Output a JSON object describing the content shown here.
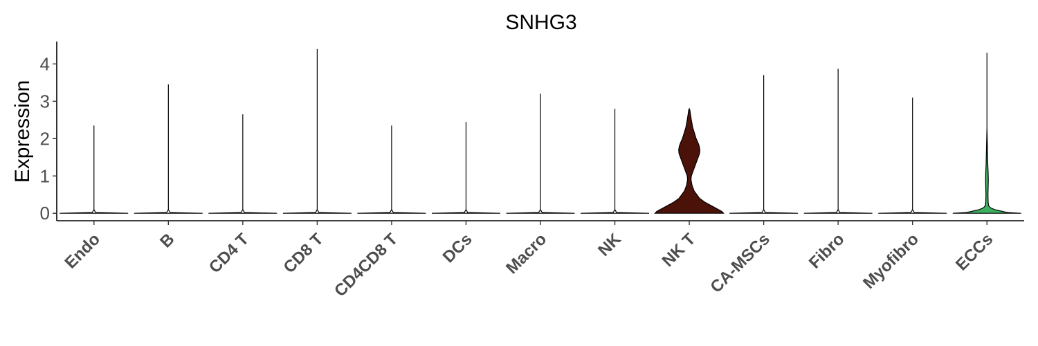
{
  "chart_data": {
    "type": "violin",
    "title": "SNHG3",
    "xlabel": "",
    "ylabel": "Expression",
    "ylim": [
      -0.2,
      4.6
    ],
    "yticks": [
      "0",
      "1",
      "2",
      "3",
      "4"
    ],
    "grid": false,
    "legend": "none",
    "categories": [
      "Endo",
      "B",
      "CD4 T",
      "CD8 T",
      "CD4CD8 T",
      "DCs",
      "Macro",
      "NK",
      "NK T",
      "CA-MSCs",
      "Fibro",
      "Myofibro",
      "ECCs"
    ],
    "max_values": [
      2.35,
      3.45,
      2.65,
      4.4,
      2.35,
      2.45,
      3.2,
      2.8,
      2.8,
      3.7,
      3.87,
      3.1,
      4.3
    ],
    "fill_colors": [
      "#ffffff",
      "#ffffff",
      "#ffffff",
      "#ffffff",
      "#ffffff",
      "#ffffff",
      "#ffffff",
      "#ffffff",
      "#4a1208",
      "#ffffff",
      "#ffffff",
      "#ffffff",
      "#3cb05e"
    ],
    "density_profiles": [
      [
        [
          0,
          1
        ],
        [
          0.02,
          0.05
        ],
        [
          0.1,
          0.0
        ]
      ],
      [
        [
          0,
          1
        ],
        [
          0.02,
          0.05
        ],
        [
          0.1,
          0.0
        ]
      ],
      [
        [
          0,
          1
        ],
        [
          0.02,
          0.05
        ],
        [
          0.1,
          0.0
        ]
      ],
      [
        [
          0,
          1
        ],
        [
          0.02,
          0.05
        ],
        [
          0.1,
          0.0
        ]
      ],
      [
        [
          0,
          1
        ],
        [
          0.02,
          0.05
        ],
        [
          0.1,
          0.0
        ]
      ],
      [
        [
          0,
          1
        ],
        [
          0.02,
          0.05
        ],
        [
          0.1,
          0.0
        ]
      ],
      [
        [
          0,
          1
        ],
        [
          0.02,
          0.05
        ],
        [
          0.1,
          0.0
        ]
      ],
      [
        [
          0,
          1
        ],
        [
          0.02,
          0.05
        ],
        [
          0.1,
          0.0
        ]
      ],
      [
        [
          0,
          1
        ],
        [
          0.05,
          0.95
        ],
        [
          0.1,
          0.85
        ],
        [
          0.2,
          0.65
        ],
        [
          0.3,
          0.45
        ],
        [
          0.4,
          0.3
        ],
        [
          0.5,
          0.22
        ],
        [
          0.6,
          0.14
        ],
        [
          0.75,
          0.08
        ],
        [
          0.9,
          0.05
        ],
        [
          1.0,
          0.06
        ],
        [
          1.1,
          0.1
        ],
        [
          1.2,
          0.14
        ],
        [
          1.3,
          0.18
        ],
        [
          1.4,
          0.22
        ],
        [
          1.5,
          0.26
        ],
        [
          1.6,
          0.3
        ],
        [
          1.7,
          0.31
        ],
        [
          1.8,
          0.29
        ],
        [
          1.9,
          0.25
        ],
        [
          2.0,
          0.2
        ],
        [
          2.15,
          0.15
        ],
        [
          2.3,
          0.1
        ],
        [
          2.5,
          0.06
        ],
        [
          2.65,
          0.035
        ],
        [
          2.75,
          0.02
        ],
        [
          2.8,
          0.0
        ]
      ],
      [
        [
          0,
          1
        ],
        [
          0.02,
          0.05
        ],
        [
          0.1,
          0.0
        ]
      ],
      [
        [
          0,
          1
        ],
        [
          0.02,
          0.05
        ],
        [
          0.1,
          0.0
        ]
      ],
      [
        [
          0,
          1
        ],
        [
          0.02,
          0.05
        ],
        [
          0.1,
          0.0
        ]
      ],
      [
        [
          0,
          1
        ],
        [
          0.02,
          0.6
        ],
        [
          0.05,
          0.45
        ],
        [
          0.1,
          0.22
        ],
        [
          0.15,
          0.1
        ],
        [
          0.2,
          0.05
        ],
        [
          0.3,
          0.035
        ],
        [
          0.5,
          0.03
        ],
        [
          0.7,
          0.035
        ],
        [
          0.9,
          0.04
        ],
        [
          1.1,
          0.035
        ],
        [
          1.3,
          0.025
        ],
        [
          1.5,
          0.02
        ],
        [
          1.7,
          0.015
        ],
        [
          1.9,
          0.01
        ],
        [
          2.1,
          0.005
        ],
        [
          2.3,
          0.0
        ]
      ]
    ]
  }
}
